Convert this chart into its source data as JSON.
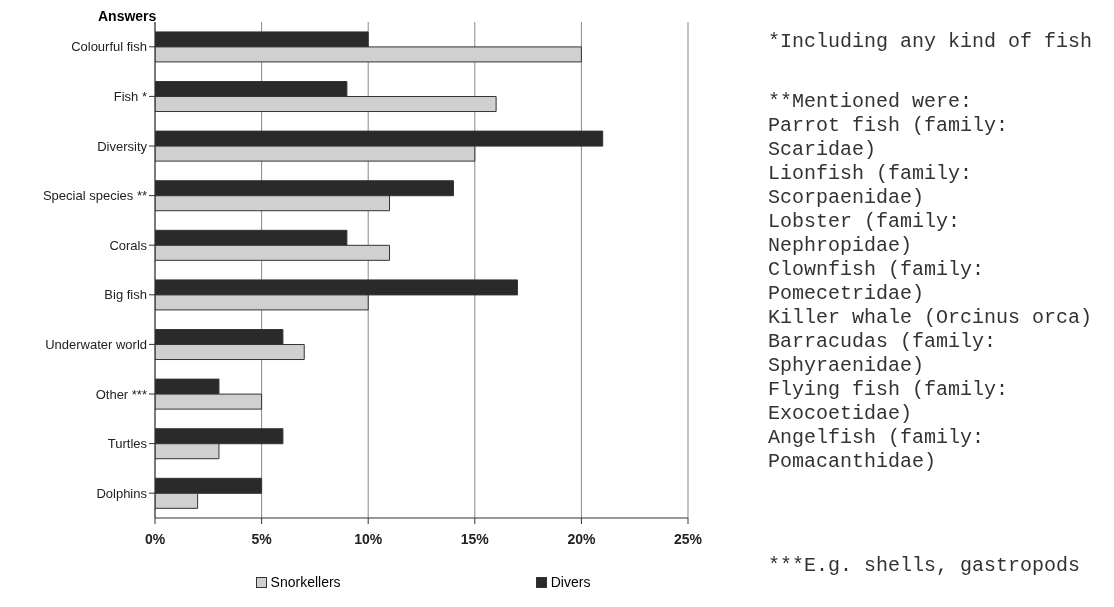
{
  "chart_data": {
    "type": "bar",
    "orientation": "horizontal",
    "ylabel": "Answers",
    "categories": [
      "Colourful fish",
      "Fish *",
      "Diversity",
      "Special species **",
      "Corals",
      "Big fish",
      "Underwater world",
      "Other ***",
      "Turtles",
      "Dolphins"
    ],
    "series": [
      {
        "name": "Snorkellers",
        "color": "#d0d0d0",
        "values": [
          20,
          16,
          15,
          11,
          11,
          10,
          7,
          5,
          3,
          2
        ]
      },
      {
        "name": "Divers",
        "color": "#2a2a2a",
        "values": [
          10,
          9,
          21,
          14,
          9,
          17,
          6,
          3,
          6,
          5
        ]
      }
    ],
    "xlim": [
      0,
      25
    ],
    "xticks": [
      {
        "value": 0,
        "label": "0%"
      },
      {
        "value": 5,
        "label": "5%"
      },
      {
        "value": 10,
        "label": "10%"
      },
      {
        "value": 15,
        "label": "15%"
      },
      {
        "value": 20,
        "label": "20%"
      },
      {
        "value": 25,
        "label": "25%"
      }
    ],
    "grid": "x",
    "legend": "bottom",
    "annotations": [
      "*Including any kind of fish",
      "**Mentioned were:",
      "Parrot fish (family: Scaridae)",
      "Lionfish (family: Scorpaenidae)",
      "Lobster (family: Nephropidae)",
      "Clownfish (family: Pomecetridae)",
      "Killer whale (Orcinus orca)",
      "Barracudas (family: Sphyraenidae)",
      "Flying fish (family: Exocoetidae)",
      "Angelfish (family: Pomacanthidae)",
      "***E.g. shells, gastropods"
    ]
  }
}
